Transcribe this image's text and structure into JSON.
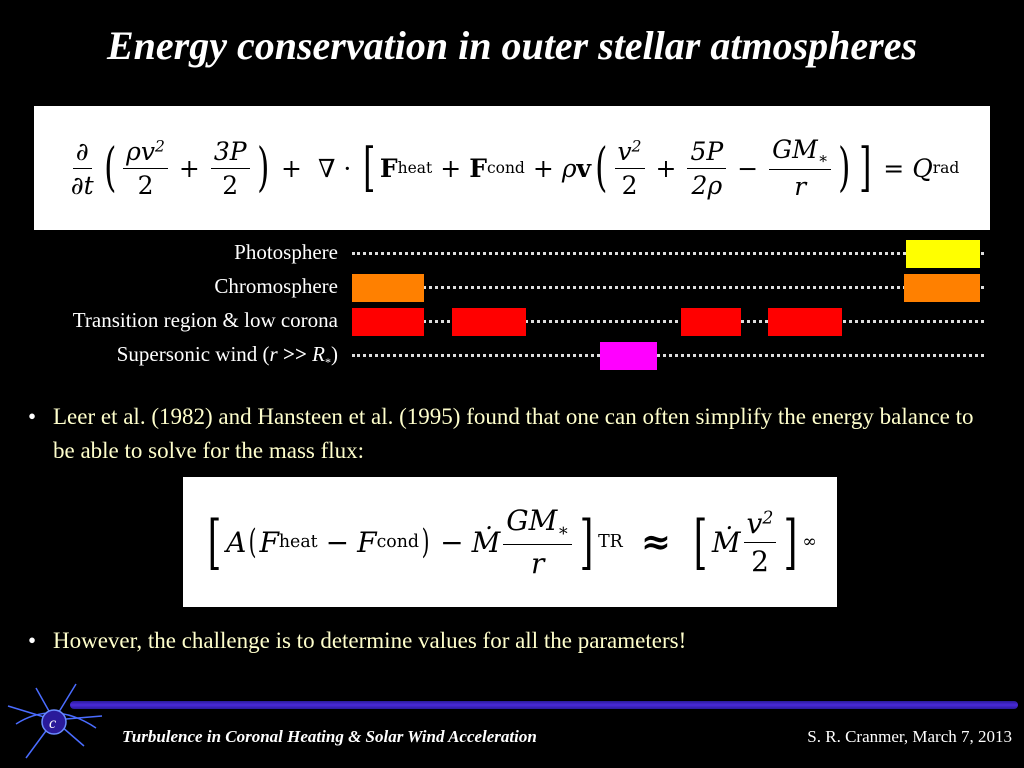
{
  "title": "Energy conservation in outer stellar atmospheres",
  "equation1": {
    "d": "∂",
    "dt": "∂t",
    "rho_v2": "ρv",
    "two": "2",
    "three_p": "3P",
    "plus": "+",
    "nabla": "∇ ·",
    "f": "F",
    "heat": "heat",
    "cond": "cond",
    "rho_vec_v": "ρ",
    "v_bold": "v",
    "v2": "v",
    "five_p": "5P",
    "two_rho": "2ρ",
    "minus": "−",
    "gm": "GM",
    "star": "∗",
    "r": "r",
    "equals": "=",
    "q": "Q",
    "rad": "rad"
  },
  "regions": [
    {
      "label": "Photosphere"
    },
    {
      "label": "Chromosphere"
    },
    {
      "label": "Transition region & low corona"
    },
    {
      "label_pre": "Supersonic wind (",
      "label_r": "r",
      "label_op": " >> ",
      "label_R": "R",
      "label_star": "*",
      "label_post": ")"
    }
  ],
  "colors": {
    "photosphere": "#ffff00",
    "chromosphere": "#ff8000",
    "transition": "#ff0000",
    "wind": "#ff00ff",
    "bullet_text": "#ffffcc",
    "footer_bar": "#4a2ad8"
  },
  "bullet1": "Leer et al. (1982) and Hansteen et al. (1995) found that one can often simplify the energy balance to be able to solve for the mass flux:",
  "equation2": {
    "A": "A",
    "F": "F",
    "heat": "heat",
    "minus": "−",
    "cond": "cond",
    "Mdot": "Ṁ",
    "GM": "GM",
    "star": "∗",
    "r": "r",
    "TR": "TR",
    "approx": "≈",
    "v": "v",
    "two": "2",
    "inf": "∞"
  },
  "bullet2": "However, the challenge is to determine values for all the parameters!",
  "footer": {
    "left": "Turbulence in Coronal Heating & Solar Wind Acceleration",
    "right": "S. R. Cranmer, March 7, 2013",
    "logo_icon": "cfa-logo-icon"
  }
}
